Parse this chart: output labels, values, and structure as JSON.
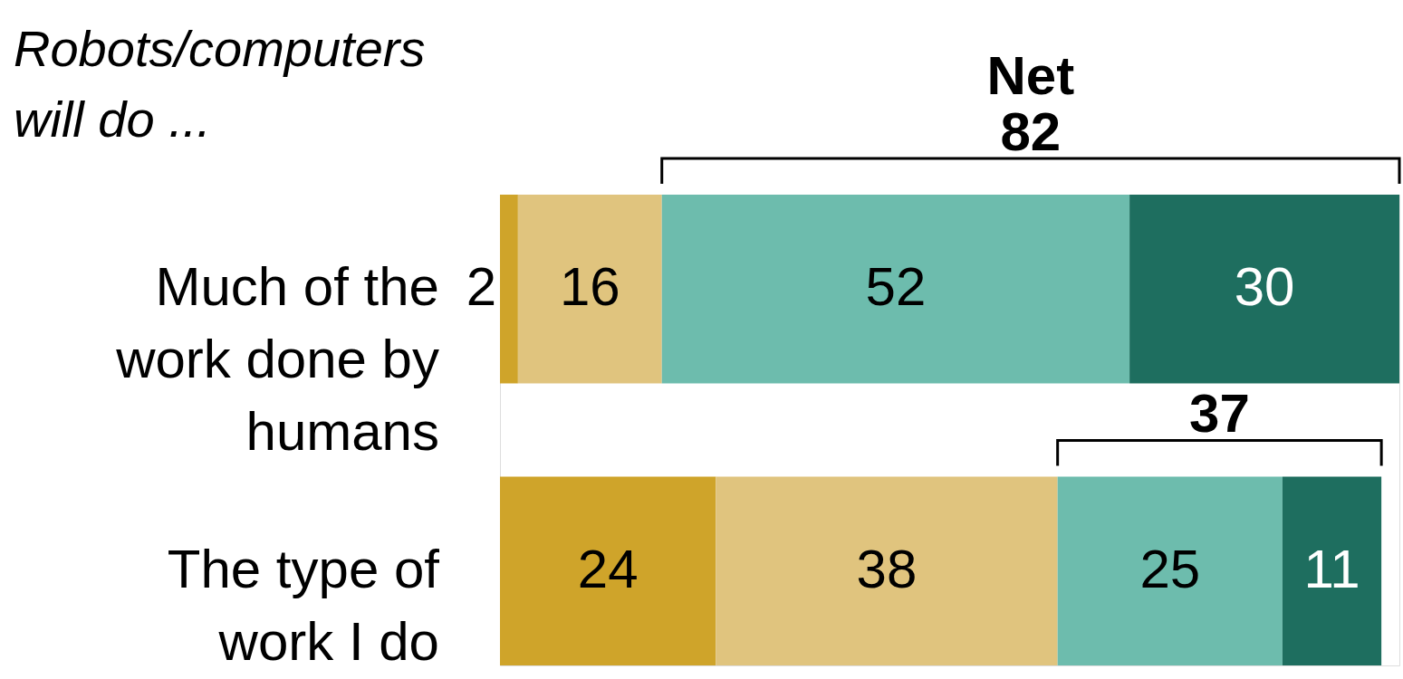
{
  "chart_data": {
    "type": "bar",
    "orientation": "horizontal",
    "stacked": true,
    "title": "Robots/computers will do ...",
    "categories": [
      "Much of the work done by humans",
      "The type of work I do"
    ],
    "series": [
      {
        "color": "#cfa42a",
        "values": [
          2,
          24
        ]
      },
      {
        "color": "#e0c47e",
        "values": [
          16,
          38
        ]
      },
      {
        "color": "#6dbcad",
        "values": [
          52,
          25
        ]
      },
      {
        "color": "#1e6e5f",
        "values": [
          30,
          11
        ]
      }
    ],
    "data_labels": true,
    "tick_labels": "y",
    "annotations": [
      "Net",
      "82",
      "37"
    ]
  }
}
